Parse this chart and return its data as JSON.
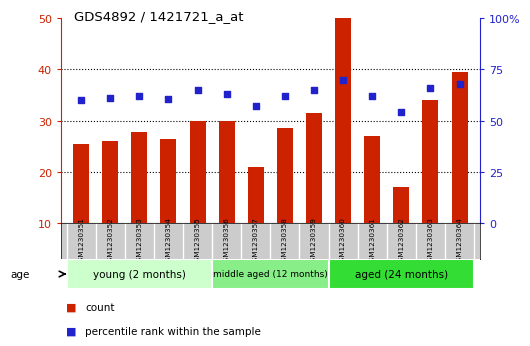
{
  "title": "GDS4892 / 1421721_a_at",
  "samples": [
    "GSM1230351",
    "GSM1230352",
    "GSM1230353",
    "GSM1230354",
    "GSM1230355",
    "GSM1230356",
    "GSM1230357",
    "GSM1230358",
    "GSM1230359",
    "GSM1230360",
    "GSM1230361",
    "GSM1230362",
    "GSM1230363",
    "GSM1230364"
  ],
  "counts": [
    25.5,
    26.0,
    27.8,
    26.5,
    30.0,
    30.0,
    21.0,
    28.5,
    31.5,
    50.0,
    27.0,
    17.0,
    34.0,
    39.5
  ],
  "percentiles": [
    60.0,
    61.0,
    62.0,
    60.5,
    65.0,
    63.0,
    57.0,
    62.0,
    65.0,
    70.0,
    62.0,
    54.0,
    66.0,
    68.0
  ],
  "bar_color": "#cc2200",
  "dot_color": "#2222cc",
  "ylim_left": [
    10,
    50
  ],
  "ylim_right": [
    0,
    100
  ],
  "yticks_left": [
    10,
    20,
    30,
    40,
    50
  ],
  "yticks_right": [
    0,
    25,
    50,
    75,
    100
  ],
  "ytick_labels_right": [
    "0",
    "25",
    "50",
    "75",
    "100%"
  ],
  "groups": [
    {
      "label": "young (2 months)",
      "start": 0,
      "end": 5,
      "color": "#ccffcc"
    },
    {
      "label": "middle aged (12 months)",
      "start": 5,
      "end": 9,
      "color": "#88ee88"
    },
    {
      "label": "aged (24 months)",
      "start": 9,
      "end": 14,
      "color": "#33dd33"
    }
  ],
  "legend_count_label": "count",
  "legend_pct_label": "percentile rank within the sample",
  "grid_color": "#000000",
  "tick_color_left": "#cc2200",
  "tick_color_right": "#2222cc",
  "background_samples": "#cccccc"
}
